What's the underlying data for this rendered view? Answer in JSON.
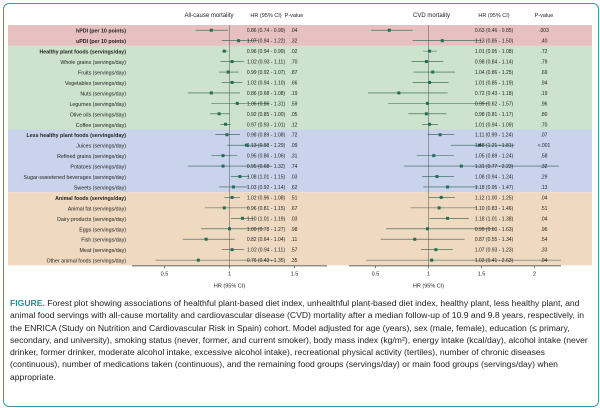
{
  "figure_label": "FIGURE.",
  "caption": "Forest plot showing associations of healthful plant-based diet index, unhealthful plant-based diet index, healthy plant, less healthy plant, and animal food servings with all-cause mortality and cardiovascular disease (CVD) mortality after a median follow-up of 10.9 and 9.8 years, respectively, in the ENRICA (Study on Nutrition and Cardiovascular Risk in Spain) cohort. Model adjusted for age (years), sex (male, female), education (≤ primary, secondary, and university), smoking status (never, former, and current smoker), body mass index (kg/m²), energy intake (kcal/day), alcohol intake (never drinker, former drinker, moderate alcohol intake, excessive alcohol intake), recreational physical activity (tertiles), number of chronic diseases (continuous), number of medications taken (continuous), and the remaining food groups (servings/day) or main food groups (servings/day) when appropriate.",
  "chart_data": {
    "type": "forest",
    "rows": [
      {
        "label": "hPDI (per 10 points)",
        "bold": true,
        "group": "index"
      },
      {
        "label": "uPDI (per 10 points)",
        "bold": true,
        "group": "index"
      },
      {
        "label": "Healthy plant foods (servings/day)",
        "bold": true,
        "group": "healthy"
      },
      {
        "label": "Whole grains (servings/day)",
        "bold": false,
        "group": "healthy"
      },
      {
        "label": "Fruits (servings/day)",
        "bold": false,
        "group": "healthy"
      },
      {
        "label": "Vegetables (servings/day)",
        "bold": false,
        "group": "healthy"
      },
      {
        "label": "Nuts (servings/day)",
        "bold": false,
        "group": "healthy"
      },
      {
        "label": "Legumes (servings/day)",
        "bold": false,
        "group": "healthy"
      },
      {
        "label": "Olive oils (servings/day)",
        "bold": false,
        "group": "healthy"
      },
      {
        "label": "Coffee (servings/day)",
        "bold": false,
        "group": "healthy"
      },
      {
        "label": "Less healthy plant foods (servings/day)",
        "bold": true,
        "group": "less"
      },
      {
        "label": "Juices (servings/day)",
        "bold": false,
        "group": "less"
      },
      {
        "label": "Refined grains (servings/day)",
        "bold": false,
        "group": "less"
      },
      {
        "label": "Potatoes (servings/day)",
        "bold": false,
        "group": "less"
      },
      {
        "label": "Sugar-sweetened beverages (servings/day)",
        "bold": false,
        "group": "less"
      },
      {
        "label": "Sweets (servings/day)",
        "bold": false,
        "group": "less"
      },
      {
        "label": "Animal foods (servings/day)",
        "bold": true,
        "group": "animal"
      },
      {
        "label": "Animal fat (servings/day)",
        "bold": false,
        "group": "animal"
      },
      {
        "label": "Dairy products (servings/day)",
        "bold": false,
        "group": "animal"
      },
      {
        "label": "Eggs (servings/day)",
        "bold": false,
        "group": "animal"
      },
      {
        "label": "Fish (servings/day)",
        "bold": false,
        "group": "animal"
      },
      {
        "label": "Meat (servings/day)",
        "bold": false,
        "group": "animal"
      },
      {
        "label": "Other animal foods (servings/day)",
        "bold": false,
        "group": "animal"
      }
    ],
    "group_colors": {
      "index": "#e7c1c1",
      "healthy": "#cde3cd",
      "less": "#c9d4ec",
      "animal": "#f0d9c1"
    },
    "panels": [
      {
        "title": "All-cause mortality",
        "hr_header": "HR (95% CI)",
        "p_header": "P-value",
        "xlabel": "HR (95% CI)",
        "xlim": [
          0.25,
          1.75
        ],
        "ticks": [
          0.5,
          1,
          1.5
        ],
        "tick_labels": [
          "0.5",
          "1",
          "1.5"
        ],
        "hr": [
          0.86,
          1.07,
          0.96,
          1.02,
          0.99,
          1.02,
          0.86,
          1.06,
          0.92,
          0.97,
          0.98,
          1.13,
          0.95,
          0.95,
          1.08,
          1.03,
          1.02,
          0.96,
          1.1,
          1.0,
          0.82,
          1.02,
          0.76
        ],
        "lo": [
          0.74,
          0.94,
          0.94,
          0.93,
          0.92,
          0.94,
          0.68,
          0.86,
          0.85,
          0.93,
          0.89,
          0.98,
          0.86,
          0.68,
          1.01,
          0.92,
          0.96,
          0.81,
          1.01,
          0.78,
          0.64,
          0.94,
          0.43
        ],
        "hi": [
          0.99,
          1.22,
          0.99,
          1.11,
          1.07,
          1.1,
          1.08,
          1.31,
          1.0,
          1.01,
          1.08,
          1.29,
          1.06,
          1.32,
          1.15,
          1.14,
          1.08,
          1.15,
          1.19,
          1.27,
          1.04,
          1.11,
          1.35
        ],
        "ci_text": [
          "0.86 (0.74 - 0.99)",
          "1.07 (0.94 - 1.22)",
          "0.96 (0.94 - 0.99)",
          "1.02 (0.93 - 1.11)",
          "0.99 (0.92 - 1.07)",
          "1.02 (0.94 - 1.10)",
          "0.86 (0.68 - 1.08)",
          "1.06 (0.86 - 1.31)",
          "0.92 (0.85 - 1.00)",
          "0.97 (0.93 - 1.01)",
          "0.98 (0.89 - 1.08)",
          "1.13 (0.98 - 1.29)",
          "0.95 (0.86 - 1.06)",
          "0.95 (0.68 - 1.32)",
          "1.08 (1.01 - 1.15)",
          "1.03 (0.92 - 1.14)",
          "1.02 (0.96 - 1.08)",
          "0.96 (0.81 - 1.15)",
          "1.10 (1.01 - 1.19)",
          "1.00 (0.78 - 1.27)",
          "0.82 (0.64 - 1.04)",
          "1.02 (0.94 - 1.11)",
          "0.76 (0.43 - 1.35)"
        ],
        "p": [
          ".04",
          ".32",
          ".02",
          ".70",
          ".87",
          ".66",
          ".19",
          ".59",
          ".05",
          ".12",
          ".72",
          ".09",
          ".31",
          ".74",
          ".03",
          ".62",
          ".51",
          ".67",
          ".03",
          ".98",
          ".11",
          ".57",
          ".35"
        ]
      },
      {
        "title": "CVD mortality",
        "hr_header": "HR (95% CI)",
        "p_header": "P-value",
        "xlabel": "HR (95% CI)",
        "xlim": [
          0.25,
          2.25
        ],
        "ticks": [
          0.5,
          1,
          1.5,
          2
        ],
        "tick_labels": [
          "0.5",
          "1",
          "1.5",
          "2"
        ],
        "hr": [
          0.63,
          1.13,
          1.01,
          0.98,
          1.04,
          1.01,
          0.72,
          0.99,
          0.98,
          1.01,
          1.11,
          1.48,
          1.05,
          1.31,
          1.08,
          1.18,
          1.12,
          1.1,
          1.18,
          0.99,
          0.87,
          1.07,
          1.03
        ],
        "lo": [
          0.46,
          0.85,
          0.95,
          0.84,
          0.86,
          0.85,
          0.43,
          0.62,
          0.81,
          0.94,
          0.99,
          1.21,
          0.89,
          0.77,
          0.94,
          0.95,
          1.0,
          0.83,
          1.01,
          0.6,
          0.55,
          0.93,
          0.41
        ],
        "hi": [
          0.85,
          1.5,
          1.08,
          1.14,
          1.25,
          1.19,
          1.18,
          1.57,
          1.17,
          1.09,
          1.24,
          1.81,
          1.24,
          2.23,
          1.24,
          1.47,
          1.25,
          1.46,
          1.38,
          1.63,
          1.34,
          1.23,
          2.63
        ],
        "ci_text": [
          "0.63 (0.46 - 0.85)",
          "1.13 (0.85 - 1.50)",
          "1.01 (0.95 - 1.08)",
          "0.98 (0.84 - 1.14)",
          "1.04 (0.86 - 1.25)",
          "1.01 (0.85 - 1.19)",
          "0.72 (0.43 - 1.18)",
          "0.99 (0.62 - 1.57)",
          "0.98 (0.81 - 1.17)",
          "1.01 (0.94 - 1.09)",
          "1.11 (0.99 - 1.24)",
          "1.48 (1.21 - 1.81)",
          "1.05 (0.89 - 1.24)",
          "1.31 (0.77 - 2.23)",
          "1.08 (0.94 - 1.24)",
          "1.18 (0.95 - 1.47)",
          "1.12 (1.00 - 1.25)",
          "1.10 (0.83 - 1.46)",
          "1.18 (1.01 - 1.38)",
          "0.99 (0.60 - 1.63)",
          "0.87 (0.55 - 1.34)",
          "1.07 (0.93 - 1.23)",
          "1.03 (0.41 - 2.63)"
        ],
        "p": [
          ".003",
          ".40",
          ".72",
          ".79",
          ".69",
          ".94",
          ".19",
          ".96",
          ".80",
          ".70",
          ".07",
          "<.001",
          ".58",
          ".32",
          ".29",
          ".13",
          ".04",
          ".51",
          ".04",
          ".96",
          ".54",
          ".33",
          ".94"
        ]
      }
    ]
  }
}
